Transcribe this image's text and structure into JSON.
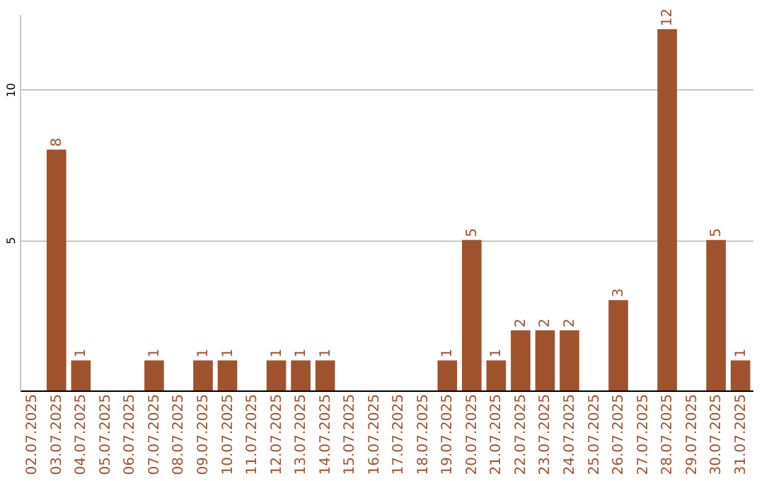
{
  "chart_data": {
    "type": "bar",
    "categories": [
      "02.07.2025",
      "03.07.2025",
      "04.07.2025",
      "05.07.2025",
      "06.07.2025",
      "07.07.2025",
      "08.07.2025",
      "09.07.2025",
      "10.07.2025",
      "11.07.2025",
      "12.07.2025",
      "13.07.2025",
      "14.07.2025",
      "15.07.2025",
      "16.07.2025",
      "17.07.2025",
      "18.07.2025",
      "19.07.2025",
      "20.07.2025",
      "21.07.2025",
      "22.07.2025",
      "23.07.2025",
      "24.07.2025",
      "25.07.2025",
      "26.07.2025",
      "27.07.2025",
      "28.07.2025",
      "29.07.2025",
      "30.07.2025",
      "31.07.2025"
    ],
    "values": [
      0,
      8,
      1,
      0,
      0,
      1,
      0,
      1,
      1,
      0,
      1,
      1,
      1,
      0,
      0,
      0,
      0,
      1,
      5,
      1,
      2,
      2,
      2,
      0,
      3,
      0,
      12,
      0,
      5,
      1
    ],
    "value_labels": [
      null,
      "8",
      "1",
      null,
      null,
      "1",
      null,
      "1",
      "1",
      null,
      "1",
      "1",
      "1",
      null,
      null,
      null,
      null,
      "1",
      "5",
      "1",
      "2",
      "2",
      "2",
      null,
      "3",
      null,
      "12",
      null,
      "5",
      "1"
    ],
    "color": "#a0522d",
    "ylim": [
      0,
      12.5
    ],
    "yticks": [
      5,
      10
    ],
    "grid": "y"
  }
}
